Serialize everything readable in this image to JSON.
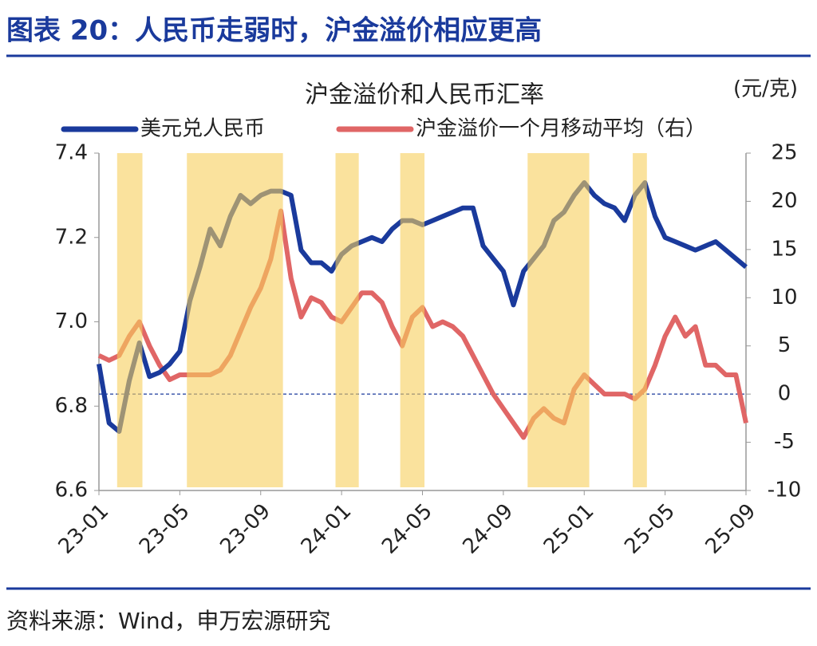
{
  "header": "图表 20：人民币走弱时，沪金溢价相应更高",
  "source": "资料来源：Wind，申万宏源研究",
  "chart_data": {
    "type": "line",
    "title": "沪金溢价和人民币汇率",
    "y2_label": "(元/克)",
    "categories": [
      "23-01",
      null,
      null,
      null,
      null,
      null,
      null,
      null,
      "23-05",
      null,
      null,
      null,
      null,
      null,
      null,
      null,
      "23-09",
      null,
      null,
      null,
      null,
      null,
      null,
      null,
      "24-01",
      null,
      null,
      null,
      null,
      null,
      null,
      null,
      "24-05",
      null,
      null,
      null,
      null,
      null,
      null,
      null,
      "24-09",
      null,
      null,
      null,
      null,
      null,
      null,
      null,
      "25-01",
      null,
      null,
      null,
      null,
      null,
      null,
      null,
      "25-05",
      null,
      null,
      null,
      null,
      null,
      null,
      null,
      "25-09"
    ],
    "series": [
      {
        "name": "美元兑人民币",
        "color": "#1a3a9c",
        "axis": "y",
        "values": [
          6.9,
          6.76,
          6.74,
          6.86,
          6.95,
          6.87,
          6.88,
          6.9,
          6.93,
          7.05,
          7.13,
          7.22,
          7.18,
          7.25,
          7.3,
          7.28,
          7.3,
          7.31,
          7.31,
          7.3,
          7.17,
          7.14,
          7.14,
          7.12,
          7.16,
          7.18,
          7.19,
          7.2,
          7.19,
          7.22,
          7.24,
          7.24,
          7.23,
          7.24,
          7.25,
          7.26,
          7.27,
          7.27,
          7.18,
          7.15,
          7.12,
          7.04,
          7.12,
          7.15,
          7.18,
          7.24,
          7.26,
          7.3,
          7.33,
          7.3,
          7.28,
          7.27,
          7.24,
          7.3,
          7.33,
          7.25,
          7.2,
          7.19,
          7.18,
          7.17,
          7.18,
          7.19,
          7.17,
          7.15,
          7.13
        ]
      },
      {
        "name": "沪金溢价一个月移动平均（右）",
        "color": "#e06666",
        "axis": "y2",
        "values": [
          4,
          3.5,
          4,
          6,
          7.5,
          5,
          3,
          1.5,
          2,
          2,
          2,
          2,
          2.5,
          4,
          6.5,
          9,
          11,
          14,
          19,
          12,
          8,
          10,
          9.5,
          8,
          7.5,
          9,
          10.5,
          10.5,
          9.5,
          7,
          5,
          8,
          9,
          7,
          7.5,
          7,
          6,
          4,
          2,
          0,
          -1.5,
          -3,
          -4.5,
          -2.5,
          -1.5,
          -2.5,
          -3,
          0.5,
          2,
          1,
          0,
          0,
          0,
          -0.5,
          0.5,
          3,
          6,
          8,
          6,
          7,
          3,
          3,
          2,
          2,
          -3
        ]
      }
    ],
    "ylim": [
      6.6,
      7.4
    ],
    "yticks": [
      6.6,
      6.8,
      {
        "value": 7,
        "label": "7.0"
      },
      7.2,
      7.4
    ],
    "y2lim": [
      -10,
      25
    ],
    "y2ticks": [
      -10,
      -5,
      0,
      5,
      10,
      15,
      20,
      25
    ],
    "y2_reference": 0,
    "shaded_ranges": [
      [
        1.8,
        4.3
      ],
      [
        8.7,
        18.2
      ],
      [
        23.4,
        25.7
      ],
      [
        29.8,
        32.2
      ],
      [
        42.4,
        48.5
      ],
      [
        52.8,
        54.2
      ]
    ],
    "shade_color": "#f7cf5c"
  }
}
